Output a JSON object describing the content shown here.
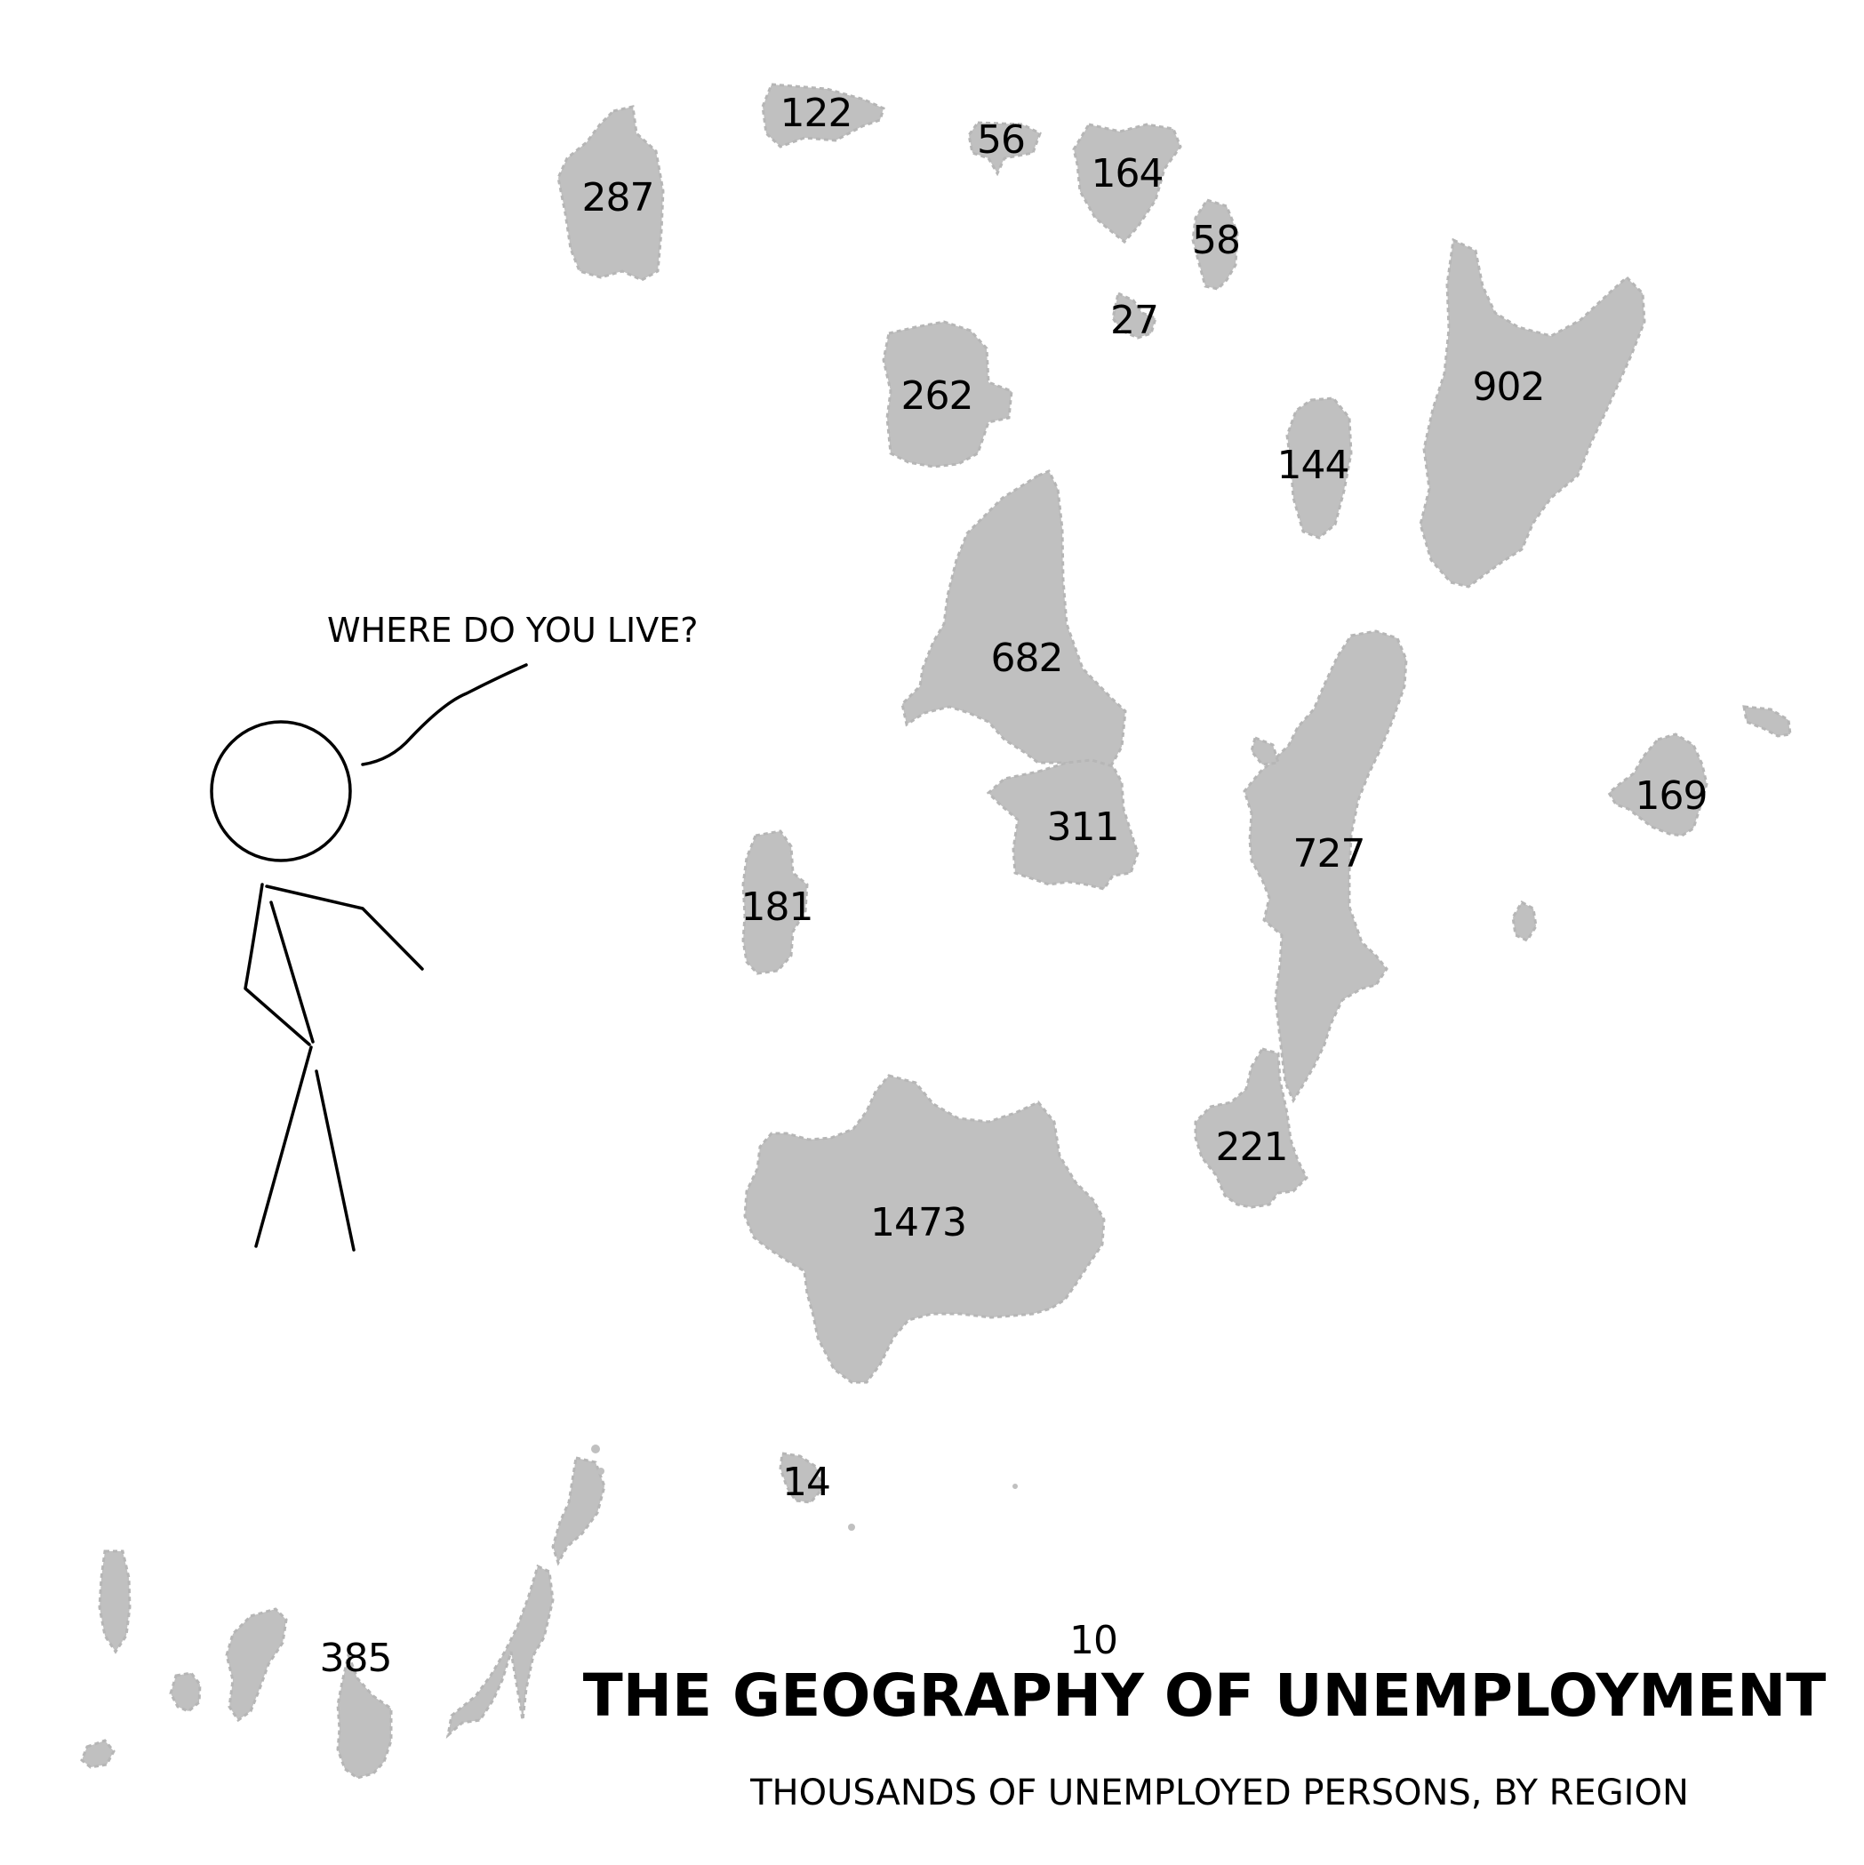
{
  "map": {
    "fill_color": "#c0c0c0",
    "unit": "thousands of unemployed persons",
    "regions": [
      {
        "id": "r287",
        "value": 287,
        "label": "287"
      },
      {
        "id": "r122",
        "value": 122,
        "label": "122"
      },
      {
        "id": "r56",
        "value": 56,
        "label": "56"
      },
      {
        "id": "r164",
        "value": 164,
        "label": "164"
      },
      {
        "id": "r58",
        "value": 58,
        "label": "58"
      },
      {
        "id": "r27",
        "value": 27,
        "label": "27"
      },
      {
        "id": "r262",
        "value": 262,
        "label": "262"
      },
      {
        "id": "r902",
        "value": 902,
        "label": "902"
      },
      {
        "id": "r144",
        "value": 144,
        "label": "144"
      },
      {
        "id": "r682",
        "value": 682,
        "label": "682"
      },
      {
        "id": "r311",
        "value": 311,
        "label": "311"
      },
      {
        "id": "r727",
        "value": 727,
        "label": "727"
      },
      {
        "id": "r169",
        "value": 169,
        "label": "169"
      },
      {
        "id": "r181",
        "value": 181,
        "label": "181"
      },
      {
        "id": "r221",
        "value": 221,
        "label": "221"
      },
      {
        "id": "r1473",
        "value": 1473,
        "label": "1473"
      },
      {
        "id": "r14",
        "value": 14,
        "label": "14"
      },
      {
        "id": "r385",
        "value": 385,
        "label": "385"
      },
      {
        "id": "r10",
        "value": 10,
        "label": "10"
      }
    ]
  },
  "figure": {
    "speech": "WHERE DO YOU LIVE?"
  },
  "title": "THE GEOGRAPHY OF UNEMPLOYMENT",
  "subtitle": "THOUSANDS OF UNEMPLOYED PERSONS, BY REGION"
}
